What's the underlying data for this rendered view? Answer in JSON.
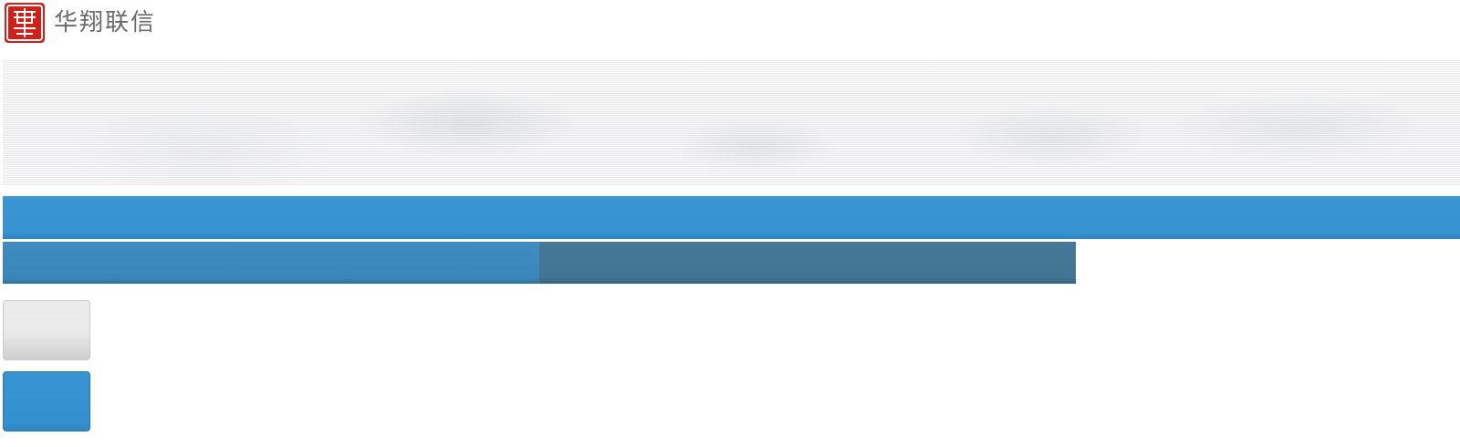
{
  "header": {
    "logo_text": "华翔联信",
    "logo_icon": "seal-logo-icon"
  },
  "banner": {},
  "nav": {
    "items": []
  },
  "sub_tabs": {
    "items": [
      {
        "label": ""
      },
      {
        "label": ""
      }
    ]
  },
  "buttons": {
    "grey_label": "",
    "blue_label": ""
  },
  "colors": {
    "brand_red": "#d0201a",
    "nav_blue": "#3693d0",
    "tab_active": "#3b87bb",
    "tab_dark": "#427593",
    "button_blue": "#3590cf",
    "button_grey": "#e9e9ea"
  }
}
